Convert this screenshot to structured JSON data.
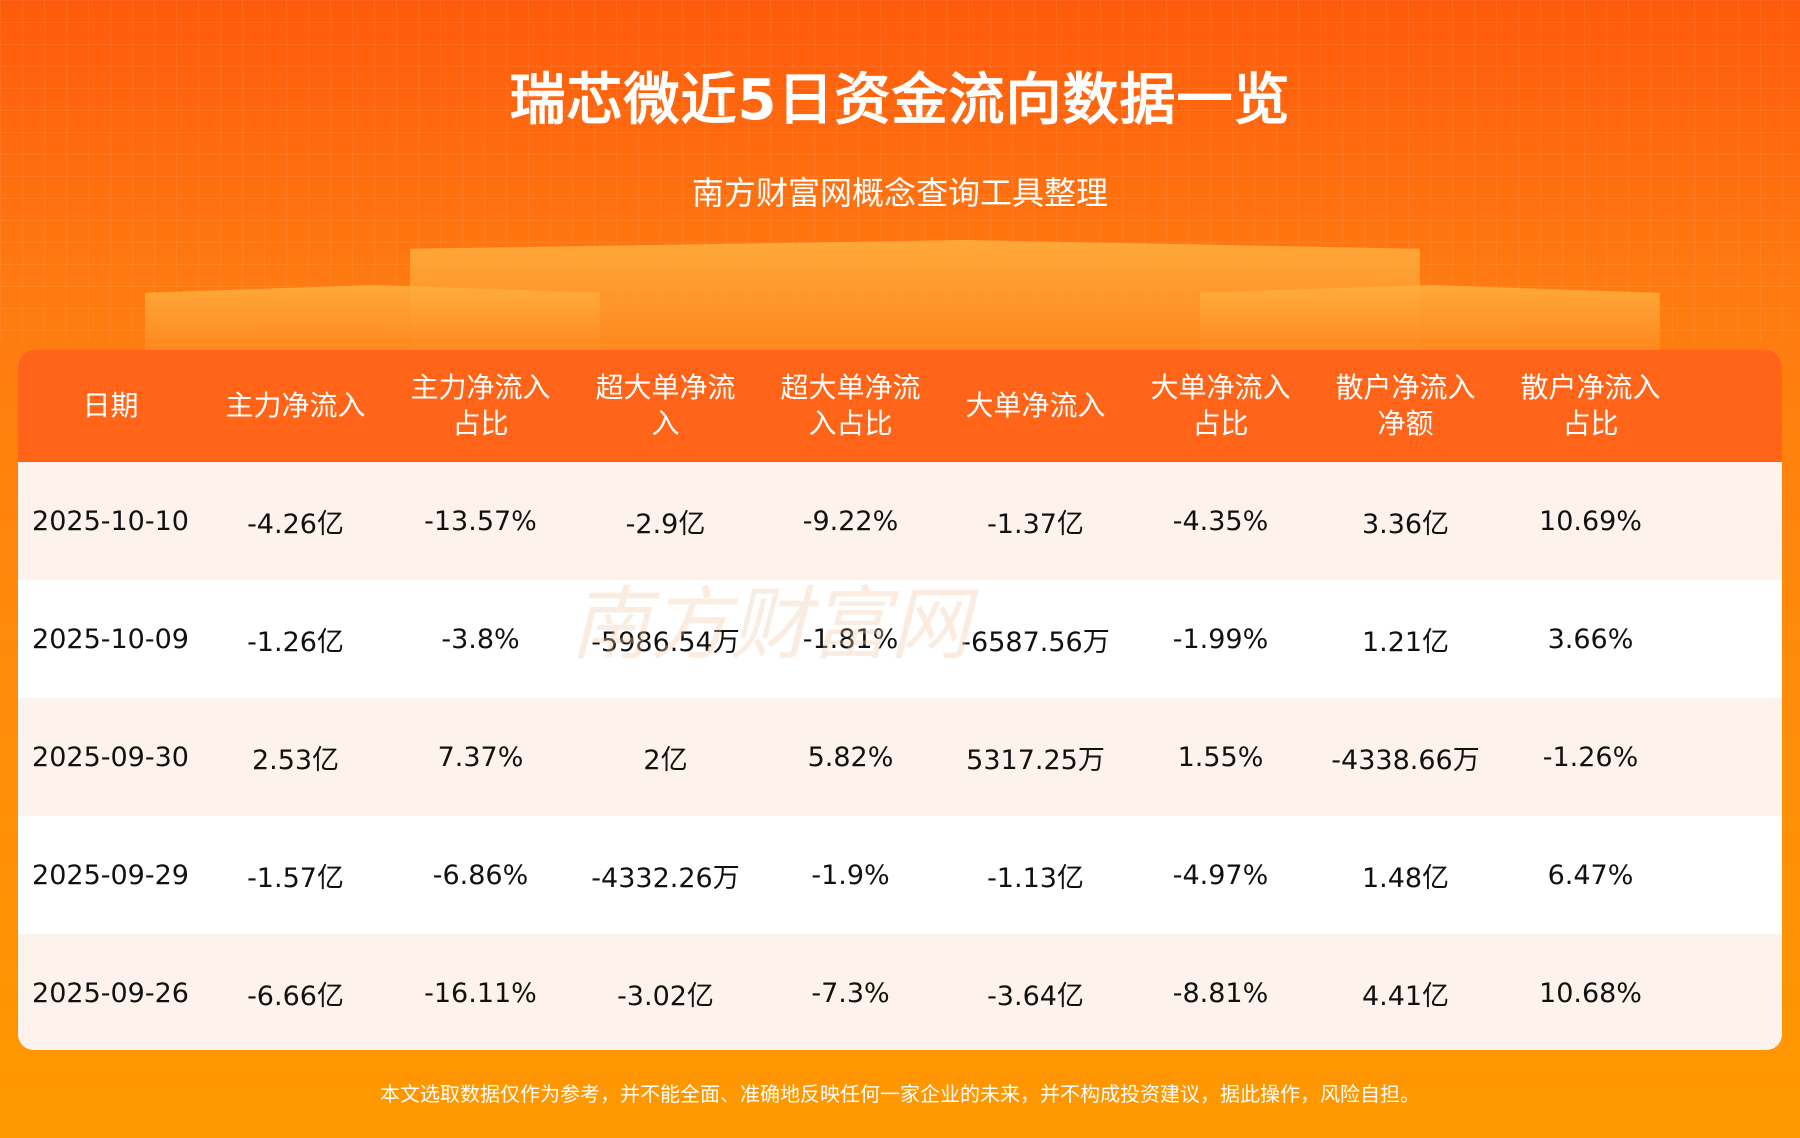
{
  "title": "瑞芯微近5日资金流向数据一览",
  "subtitle": "南方财富网概念查询工具整理",
  "watermark": "南方财富网 southmoney.com",
  "colors": {
    "header": "#ff6418",
    "odd_row": "#fdf3ec",
    "background": "#ff8c0a"
  },
  "table": {
    "headers": [
      "日期",
      "主力净流入",
      "主力净流入占比",
      "超大单净流入",
      "超大单净流入占比",
      "大单净流入",
      "大单净流入占比",
      "散户净流入净额",
      "散户净流入占比"
    ],
    "rows": [
      [
        "2025-10-10",
        "-4.26亿",
        "-13.57%",
        "-2.9亿",
        "-9.22%",
        "-1.37亿",
        "-4.35%",
        "3.36亿",
        "10.69%"
      ],
      [
        "2025-10-09",
        "-1.26亿",
        "-3.8%",
        "-5986.54万",
        "-1.81%",
        "-6587.56万",
        "-1.99%",
        "1.21亿",
        "3.66%"
      ],
      [
        "2025-09-30",
        "2.53亿",
        "7.37%",
        "2亿",
        "5.82%",
        "5317.25万",
        "1.55%",
        "-4338.66万",
        "-1.26%"
      ],
      [
        "2025-09-29",
        "-1.57亿",
        "-6.86%",
        "-4332.26万",
        "-1.9%",
        "-1.13亿",
        "-4.97%",
        "1.48亿",
        "6.47%"
      ],
      [
        "2025-09-26",
        "-6.66亿",
        "-16.11%",
        "-3.02亿",
        "-7.3%",
        "-3.64亿",
        "-8.81%",
        "4.41亿",
        "10.68%"
      ]
    ]
  },
  "footer": "本文选取数据仅作为参考，并不能全面、准确地反映任何一家企业的未来，并不构成投资建议，据此操作，风险自担。"
}
